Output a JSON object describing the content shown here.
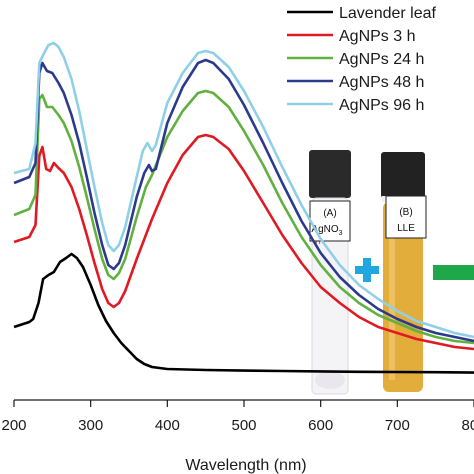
{
  "chart_data": {
    "type": "line",
    "title": "",
    "xlabel": "Wavelength (nm)",
    "ylabel": "",
    "xlim": [
      200,
      800
    ],
    "xticks": [
      200,
      300,
      400,
      500,
      600,
      700,
      800
    ],
    "grid": false,
    "legend_position": "top-right",
    "series": [
      {
        "name": "Lavender leaf",
        "color": "#000000",
        "x": [
          200,
          220,
          225,
          232,
          238,
          245,
          252,
          260,
          268,
          275,
          282,
          290,
          300,
          310,
          320,
          330,
          340,
          350,
          360,
          370,
          380,
          400,
          450,
          500,
          550,
          600,
          650,
          700,
          750,
          800
        ],
        "y": [
          0.28,
          0.305,
          0.32,
          0.4,
          0.52,
          0.54,
          0.555,
          0.605,
          0.625,
          0.645,
          0.625,
          0.58,
          0.49,
          0.39,
          0.31,
          0.25,
          0.2,
          0.16,
          0.12,
          0.095,
          0.08,
          0.07,
          0.065,
          0.062,
          0.06,
          0.058,
          0.056,
          0.055,
          0.054,
          0.052
        ]
      },
      {
        "name": "AgNPs 3 h",
        "color": "#e01a23",
        "x": [
          200,
          220,
          228,
          233,
          237,
          242,
          247,
          252,
          258,
          265,
          275,
          285,
          295,
          305,
          315,
          323,
          330,
          337,
          345,
          360,
          380,
          400,
          420,
          440,
          450,
          460,
          480,
          500,
          525,
          550,
          575,
          600,
          625,
          650,
          675,
          700,
          725,
          750,
          775,
          800
        ],
        "y": [
          0.705,
          0.73,
          0.79,
          1.135,
          1.18,
          1.07,
          1.06,
          1.1,
          1.075,
          1.05,
          0.98,
          0.87,
          0.74,
          0.6,
          0.47,
          0.4,
          0.38,
          0.4,
          0.46,
          0.62,
          0.82,
          1.0,
          1.14,
          1.23,
          1.24,
          1.23,
          1.17,
          1.06,
          0.9,
          0.74,
          0.6,
          0.48,
          0.4,
          0.33,
          0.28,
          0.25,
          0.22,
          0.2,
          0.18,
          0.17
        ]
      },
      {
        "name": "AgNPs 24 h",
        "color": "#62b140",
        "x": [
          200,
          220,
          228,
          233,
          237,
          243,
          250,
          258,
          265,
          275,
          285,
          295,
          305,
          315,
          323,
          330,
          337,
          345,
          360,
          372,
          380,
          400,
          420,
          440,
          450,
          460,
          480,
          500,
          525,
          550,
          575,
          600,
          625,
          650,
          675,
          700,
          725,
          750,
          775,
          800
        ],
        "y": [
          0.84,
          0.87,
          0.94,
          1.42,
          1.44,
          1.38,
          1.38,
          1.34,
          1.3,
          1.21,
          1.08,
          0.93,
          0.77,
          0.62,
          0.54,
          0.52,
          0.55,
          0.62,
          0.83,
          0.98,
          1.04,
          1.23,
          1.36,
          1.45,
          1.46,
          1.45,
          1.38,
          1.26,
          1.09,
          0.9,
          0.73,
          0.59,
          0.48,
          0.4,
          0.34,
          0.3,
          0.26,
          0.23,
          0.21,
          0.2
        ]
      },
      {
        "name": "AgNPs 48 h",
        "color": "#2c3a8d",
        "x": [
          200,
          220,
          228,
          233,
          237,
          243,
          250,
          258,
          265,
          275,
          285,
          295,
          305,
          315,
          323,
          330,
          337,
          345,
          360,
          370,
          376,
          380,
          385,
          400,
          420,
          440,
          450,
          460,
          480,
          500,
          525,
          550,
          575,
          600,
          625,
          650,
          675,
          700,
          725,
          750,
          775,
          800
        ],
        "y": [
          1.0,
          1.03,
          1.1,
          1.55,
          1.6,
          1.56,
          1.55,
          1.5,
          1.45,
          1.34,
          1.2,
          1.03,
          0.85,
          0.69,
          0.59,
          0.57,
          0.6,
          0.69,
          0.93,
          1.05,
          1.09,
          1.06,
          1.07,
          1.3,
          1.48,
          1.6,
          1.615,
          1.6,
          1.52,
          1.39,
          1.2,
          1.0,
          0.81,
          0.65,
          0.53,
          0.44,
          0.37,
          0.32,
          0.28,
          0.25,
          0.23,
          0.21
        ]
      },
      {
        "name": "AgNPs 96 h",
        "color": "#8fd0e8",
        "x": [
          200,
          220,
          228,
          233,
          238,
          245,
          252,
          258,
          265,
          275,
          285,
          295,
          305,
          315,
          323,
          330,
          337,
          345,
          360,
          368,
          374,
          380,
          385,
          400,
          420,
          440,
          450,
          460,
          480,
          500,
          525,
          550,
          575,
          600,
          625,
          650,
          675,
          700,
          725,
          750,
          775,
          800
        ],
        "y": [
          1.05,
          1.07,
          1.2,
          1.6,
          1.64,
          1.69,
          1.7,
          1.68,
          1.63,
          1.52,
          1.36,
          1.17,
          0.98,
          0.8,
          0.69,
          0.66,
          0.69,
          0.78,
          1.03,
          1.16,
          1.2,
          1.16,
          1.19,
          1.4,
          1.55,
          1.65,
          1.66,
          1.65,
          1.58,
          1.46,
          1.28,
          1.08,
          0.89,
          0.72,
          0.59,
          0.49,
          0.42,
          0.36,
          0.31,
          0.28,
          0.25,
          0.23
        ]
      }
    ]
  },
  "inset": {
    "vial_a_label": "(A)",
    "vial_a_formula": "AgNO",
    "vial_a_subscript": "3",
    "vial_b_label": "(B)",
    "vial_b_text": "LLE",
    "plus_color": "#1ea7e0",
    "bar_color": "#1fa84a"
  }
}
